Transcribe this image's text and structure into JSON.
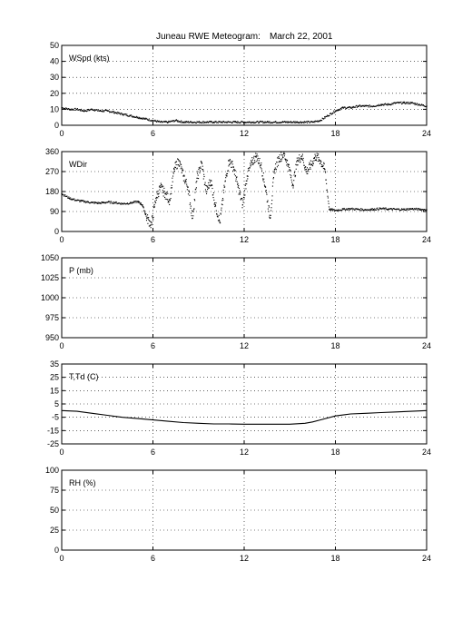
{
  "figure": {
    "title": "Juneau RWE Meteogram:",
    "date": "March 22, 2001"
  },
  "chart_data": [
    {
      "type": "scatter",
      "label": "WSpd (kts)",
      "xlim": [
        0,
        24
      ],
      "ylim": [
        0,
        50
      ],
      "xticks": [
        0,
        6,
        12,
        18,
        24
      ],
      "yticks": [
        0,
        10,
        20,
        30,
        40,
        50
      ],
      "grid": true,
      "series": [
        {
          "x": [
            0,
            0.5,
            1,
            1.5,
            2,
            2.5,
            3,
            3.5,
            4,
            4.5,
            5,
            5.5,
            6,
            6.5,
            7,
            7.5,
            8,
            8.5,
            9,
            9.5,
            10,
            10.5,
            11,
            11.5,
            12,
            12.5,
            13,
            13.5,
            14,
            14.5,
            15,
            15.5,
            16,
            16.5,
            17,
            17.5,
            18,
            18.5,
            19,
            19.5,
            20,
            20.5,
            21,
            21.5,
            22,
            22.5,
            23,
            23.5,
            24
          ],
          "y": [
            11,
            10,
            10,
            9,
            10,
            9,
            9,
            8,
            7,
            6,
            5,
            4,
            3,
            2,
            2,
            3,
            2,
            2,
            2,
            2,
            2,
            2,
            2,
            2,
            2,
            2,
            2,
            2,
            2,
            2,
            2,
            2,
            2,
            2,
            3,
            6,
            9,
            11,
            11,
            12,
            12,
            12,
            13,
            13,
            14,
            14,
            14,
            13,
            12
          ]
        }
      ]
    },
    {
      "type": "scatter",
      "label": "WDir",
      "xlim": [
        0,
        24
      ],
      "ylim": [
        0,
        360
      ],
      "xticks": [
        0,
        6,
        12,
        18,
        24
      ],
      "yticks": [
        0,
        90,
        180,
        270,
        360
      ],
      "grid": true,
      "series": [
        {
          "x": [
            0,
            0.5,
            1,
            1.5,
            2,
            2.5,
            3,
            3.5,
            4,
            4.5,
            5,
            5.3,
            5.6,
            5.9,
            6.2,
            6.5,
            6.8,
            7.1,
            7.4,
            7.7,
            8,
            8.3,
            8.6,
            8.9,
            9.2,
            9.5,
            9.8,
            10.1,
            10.4,
            10.7,
            11,
            11.3,
            11.6,
            11.9,
            12.2,
            12.5,
            12.8,
            13.1,
            13.4,
            13.7,
            14,
            14.3,
            14.6,
            14.9,
            15.2,
            15.5,
            15.8,
            16.1,
            16.4,
            16.7,
            17,
            17.3,
            17.6,
            18,
            18.5,
            19,
            19.5,
            20,
            20.5,
            21,
            21.5,
            22,
            22.5,
            23,
            23.5,
            24
          ],
          "y": [
            170,
            150,
            140,
            135,
            130,
            128,
            132,
            130,
            125,
            128,
            135,
            120,
            60,
            30,
            150,
            200,
            170,
            140,
            280,
            320,
            250,
            200,
            60,
            240,
            310,
            180,
            230,
            120,
            40,
            200,
            320,
            290,
            200,
            120,
            250,
            310,
            340,
            300,
            200,
            60,
            280,
            330,
            350,
            300,
            210,
            320,
            340,
            270,
            300,
            340,
            320,
            280,
            100,
            95,
            100,
            102,
            100,
            98,
            100,
            103,
            101,
            100,
            99,
            102,
            100,
            98
          ]
        }
      ]
    },
    {
      "type": "line",
      "label": "P (mb)",
      "xlim": [
        0,
        24
      ],
      "ylim": [
        950,
        1050
      ],
      "xticks": [
        0,
        6,
        12,
        18,
        24
      ],
      "yticks": [
        950,
        975,
        1000,
        1025,
        1050
      ],
      "grid": true,
      "series": []
    },
    {
      "type": "line",
      "label": "T,Td (C)",
      "xlim": [
        0,
        24
      ],
      "ylim": [
        -25,
        35
      ],
      "xticks": [
        0,
        6,
        12,
        18,
        24
      ],
      "yticks": [
        -25,
        -15,
        -5,
        5,
        15,
        25,
        35
      ],
      "grid": true,
      "series": [
        {
          "x": [
            0,
            1,
            2,
            3,
            4,
            5,
            6,
            7,
            8,
            9,
            10,
            11,
            12,
            13,
            14,
            15,
            16,
            16.5,
            17,
            18,
            19,
            20,
            21,
            22,
            23,
            24
          ],
          "y": [
            0,
            -0.5,
            -2,
            -3.5,
            -5,
            -6,
            -7,
            -8,
            -9,
            -9.5,
            -10,
            -10,
            -10.2,
            -10.2,
            -10.2,
            -10.2,
            -9.5,
            -8.5,
            -7,
            -4,
            -2.5,
            -2,
            -1.5,
            -1,
            -0.5,
            0
          ]
        }
      ]
    },
    {
      "type": "line",
      "label": "RH (%)",
      "xlim": [
        0,
        24
      ],
      "ylim": [
        0,
        100
      ],
      "xticks": [
        0,
        6,
        12,
        18,
        24
      ],
      "yticks": [
        0,
        25,
        50,
        75,
        100
      ],
      "grid": true,
      "series": []
    }
  ]
}
